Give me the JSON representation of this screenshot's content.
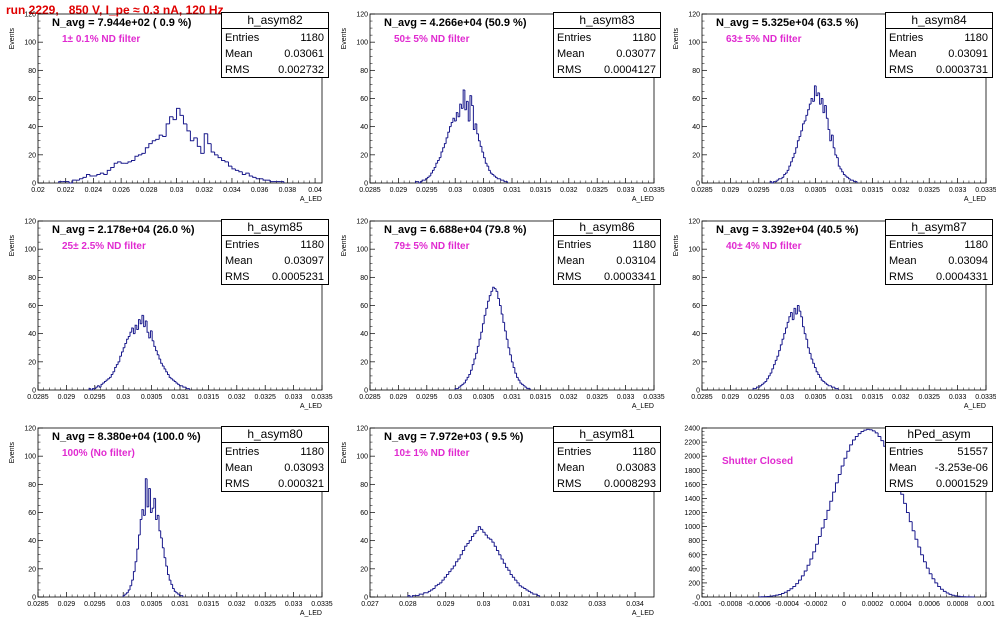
{
  "run_title": "run 2229,   850 V, I_pe ≈ 0.3 nA, 120 Hz",
  "chart_data": [
    {
      "type": "bar",
      "name": "h_asym82",
      "navg": "N_avg = 7.944e+02 ( 0.9 %)",
      "note": "1± 0.1% ND filter",
      "stats": {
        "entries": "1180",
        "mean": "0.03061",
        "rms": "0.002732"
      },
      "xlabel": "A_LED",
      "ylabel": "Events",
      "xlim": [
        0.02,
        0.0405
      ],
      "ylim": [
        0,
        120
      ],
      "xticks": [
        0.02,
        0.022,
        0.024,
        0.026,
        0.028,
        0.03,
        0.032,
        0.034,
        0.036,
        0.038,
        0.04
      ],
      "xtick_labels": [
        "0.02",
        "0.022",
        "0.024",
        "0.026",
        "0.028",
        "0.03",
        "0.032",
        "0.034",
        "0.036",
        "0.038",
        "0.04"
      ],
      "yticks": [
        0,
        20,
        40,
        60,
        80,
        100,
        120
      ],
      "bin_start": 0.0215,
      "bin_width": 0.00025,
      "counts": [
        1,
        1,
        1,
        0,
        2,
        2,
        3,
        4,
        6,
        5,
        5,
        6,
        7,
        6,
        9,
        11,
        14,
        15,
        14,
        14,
        15,
        16,
        19,
        20,
        21,
        25,
        28,
        30,
        31,
        34,
        33,
        42,
        47,
        45,
        53,
        48,
        42,
        37,
        30,
        32,
        26,
        21,
        35,
        28,
        22,
        20,
        18,
        16,
        15,
        12,
        10,
        9,
        8,
        6,
        7,
        5,
        4,
        3,
        3,
        2,
        2,
        1,
        1,
        1,
        1
      ]
    },
    {
      "type": "bar",
      "name": "h_asym83",
      "navg": "N_avg = 4.266e+04 (50.9 %)",
      "note": "50± 5% ND filter",
      "stats": {
        "entries": "1180",
        "mean": "0.03077",
        "rms": "0.0004127"
      },
      "xlabel": "A_LED",
      "ylabel": "Events",
      "xlim": [
        0.0285,
        0.0335
      ],
      "ylim": [
        0,
        120
      ],
      "xticks": [
        0.0285,
        0.029,
        0.0295,
        0.03,
        0.0305,
        0.031,
        0.0315,
        0.032,
        0.0325,
        0.033,
        0.0335
      ],
      "xtick_labels": [
        "0.0285",
        "0.029",
        "0.0295",
        "0.03",
        "0.0305",
        "0.031",
        "0.0315",
        "0.032",
        "0.0325",
        "0.033",
        "0.0335"
      ],
      "yticks": [
        0,
        20,
        40,
        60,
        80,
        100,
        120
      ],
      "bin_start": 0.0293,
      "bin_width": 3e-05,
      "counts": [
        1,
        1,
        0,
        1,
        2,
        2,
        3,
        4,
        5,
        7,
        9,
        11,
        14,
        16,
        18,
        22,
        25,
        28,
        32,
        36,
        40,
        43,
        46,
        44,
        50,
        47,
        56,
        53,
        66,
        52,
        58,
        44,
        62,
        55,
        38,
        42,
        35,
        30,
        26,
        22,
        18,
        14,
        12,
        9,
        7,
        6,
        5,
        4,
        3,
        3,
        2,
        2,
        1,
        1
      ]
    },
    {
      "type": "bar",
      "name": "h_asym84",
      "navg": "N_avg = 5.325e+04 (63.5 %)",
      "note": "63± 5% ND filter",
      "stats": {
        "entries": "1180",
        "mean": "0.03091",
        "rms": "0.0003731"
      },
      "xlabel": "A_LED",
      "ylabel": "Events",
      "xlim": [
        0.0285,
        0.0335
      ],
      "ylim": [
        0,
        120
      ],
      "xticks": [
        0.0285,
        0.029,
        0.0295,
        0.03,
        0.0305,
        0.031,
        0.0315,
        0.032,
        0.0325,
        0.033,
        0.0335
      ],
      "xtick_labels": [
        "0.0285",
        "0.029",
        "0.0295",
        "0.03",
        "0.0305",
        "0.031",
        "0.0315",
        "0.032",
        "0.0325",
        "0.033",
        "0.0335"
      ],
      "yticks": [
        0,
        20,
        40,
        60,
        80,
        100,
        120
      ],
      "bin_start": 0.0297,
      "bin_width": 3e-05,
      "counts": [
        1,
        0,
        1,
        1,
        2,
        3,
        3,
        4,
        6,
        7,
        9,
        12,
        15,
        18,
        21,
        25,
        30,
        33,
        37,
        42,
        44,
        48,
        52,
        56,
        60,
        58,
        69,
        62,
        64,
        56,
        60,
        50,
        55,
        46,
        38,
        30,
        34,
        25,
        20,
        18,
        12,
        10,
        8,
        6,
        5,
        4,
        3,
        2,
        2,
        1,
        1
      ]
    },
    {
      "type": "bar",
      "name": "h_asym85",
      "navg": "N_avg = 2.178e+04 (26.0 %)",
      "note": "25± 2.5% ND filter",
      "stats": {
        "entries": "1180",
        "mean": "0.03097",
        "rms": "0.0005231"
      },
      "xlabel": "A_LED",
      "ylabel": "Events",
      "xlim": [
        0.0285,
        0.0335
      ],
      "ylim": [
        0,
        120
      ],
      "xticks": [
        0.0285,
        0.029,
        0.0295,
        0.03,
        0.0305,
        0.031,
        0.0315,
        0.032,
        0.0325,
        0.033,
        0.0335
      ],
      "xtick_labels": [
        "0.0285",
        "0.029",
        "0.0295",
        "0.03",
        "0.0305",
        "0.031",
        "0.0315",
        "0.032",
        "0.0325",
        "0.033",
        "0.0335"
      ],
      "yticks": [
        0,
        20,
        40,
        60,
        80,
        100,
        120
      ],
      "bin_start": 0.0294,
      "bin_width": 3e-05,
      "counts": [
        1,
        0,
        1,
        1,
        2,
        3,
        2,
        4,
        5,
        6,
        7,
        8,
        9,
        11,
        13,
        16,
        18,
        20,
        24,
        27,
        30,
        33,
        36,
        38,
        41,
        44,
        40,
        46,
        43,
        50,
        47,
        53,
        45,
        49,
        41,
        37,
        42,
        35,
        31,
        28,
        25,
        22,
        19,
        17,
        15,
        13,
        11,
        9,
        8,
        7,
        6,
        5,
        4,
        3,
        3,
        2,
        2,
        1,
        1
      ]
    },
    {
      "type": "bar",
      "name": "h_asym86",
      "navg": "N_avg = 6.688e+04 (79.8 %)",
      "note": "79± 5% ND filter",
      "stats": {
        "entries": "1180",
        "mean": "0.03104",
        "rms": "0.0003341"
      },
      "xlabel": "A_LED",
      "ylabel": "Events",
      "xlim": [
        0.0285,
        0.0335
      ],
      "ylim": [
        0,
        120
      ],
      "xticks": [
        0.0285,
        0.029,
        0.0295,
        0.03,
        0.0305,
        0.031,
        0.0315,
        0.032,
        0.0325,
        0.033,
        0.0335
      ],
      "xtick_labels": [
        "0.0285",
        "0.029",
        "0.0295",
        "0.03",
        "0.0305",
        "0.031",
        "0.0315",
        "0.032",
        "0.0325",
        "0.033",
        "0.0335"
      ],
      "yticks": [
        0,
        20,
        40,
        60,
        80,
        100,
        120
      ],
      "bin_start": 0.03,
      "bin_width": 3e-05,
      "counts": [
        1,
        1,
        2,
        3,
        4,
        5,
        7,
        9,
        11,
        14,
        18,
        22,
        26,
        31,
        36,
        41,
        47,
        53,
        58,
        63,
        67,
        70,
        73,
        72,
        70,
        65,
        60,
        54,
        48,
        42,
        36,
        30,
        25,
        20,
        16,
        12,
        9,
        7,
        5,
        4,
        3,
        2,
        1,
        1
      ]
    },
    {
      "type": "bar",
      "name": "h_asym87",
      "navg": "N_avg = 3.392e+04 (40.5 %)",
      "note": "40± 4% ND filter",
      "stats": {
        "entries": "1180",
        "mean": "0.03094",
        "rms": "0.0004331"
      },
      "xlabel": "A_LED",
      "ylabel": "Events",
      "xlim": [
        0.0285,
        0.0335
      ],
      "ylim": [
        0,
        120
      ],
      "xticks": [
        0.0285,
        0.029,
        0.0295,
        0.03,
        0.0305,
        0.031,
        0.0315,
        0.032,
        0.0325,
        0.033,
        0.0335
      ],
      "xtick_labels": [
        "0.0285",
        "0.029",
        "0.0295",
        "0.03",
        "0.0305",
        "0.031",
        "0.0315",
        "0.032",
        "0.0325",
        "0.033",
        "0.0335"
      ],
      "yticks": [
        0,
        20,
        40,
        60,
        80,
        100,
        120
      ],
      "bin_start": 0.0294,
      "bin_width": 3e-05,
      "counts": [
        1,
        1,
        2,
        2,
        3,
        4,
        5,
        6,
        8,
        10,
        12,
        15,
        18,
        21,
        24,
        28,
        32,
        36,
        40,
        44,
        48,
        52,
        55,
        50,
        58,
        54,
        60,
        56,
        52,
        45,
        40,
        36,
        30,
        26,
        22,
        19,
        16,
        13,
        11,
        9,
        7,
        6,
        5,
        4,
        3,
        3,
        2,
        2,
        1,
        1
      ]
    },
    {
      "type": "bar",
      "name": "h_asym80",
      "navg": "N_avg = 8.380e+04 (100.0 %)",
      "note": "100% (No filter)",
      "stats": {
        "entries": "1180",
        "mean": "0.03093",
        "rms": "0.000321"
      },
      "xlabel": "A_LED",
      "ylabel": "Events",
      "xlim": [
        0.0285,
        0.0335
      ],
      "ylim": [
        0,
        120
      ],
      "xticks": [
        0.0285,
        0.029,
        0.0295,
        0.03,
        0.0305,
        0.031,
        0.0315,
        0.032,
        0.0325,
        0.033,
        0.0335
      ],
      "xtick_labels": [
        "0.0285",
        "0.029",
        "0.0295",
        "0.03",
        "0.0305",
        "0.031",
        "0.0315",
        "0.032",
        "0.0325",
        "0.033",
        "0.0335"
      ],
      "yticks": [
        0,
        20,
        40,
        60,
        80,
        100,
        120
      ],
      "bin_start": 0.03,
      "bin_width": 3e-05,
      "counts": [
        1,
        2,
        3,
        5,
        8,
        12,
        18,
        25,
        34,
        44,
        55,
        62,
        58,
        84,
        64,
        77,
        60,
        63,
        70,
        55,
        58,
        47,
        42,
        35,
        28,
        22,
        16,
        12,
        9,
        6,
        4,
        3,
        2,
        1,
        1
      ]
    },
    {
      "type": "bar",
      "name": "h_asym81",
      "navg": "N_avg = 7.972e+03 ( 9.5 %)",
      "note": "10± 1% ND filter",
      "stats": {
        "entries": "1180",
        "mean": "0.03083",
        "rms": "0.0008293"
      },
      "xlabel": "A_LED",
      "ylabel": "Events",
      "xlim": [
        0.027,
        0.0345
      ],
      "ylim": [
        0,
        120
      ],
      "xticks": [
        0.027,
        0.028,
        0.029,
        0.03,
        0.031,
        0.032,
        0.033,
        0.034
      ],
      "xtick_labels": [
        "0.027",
        "0.028",
        "0.029",
        "0.03",
        "0.031",
        "0.032",
        "0.033",
        "0.034"
      ],
      "yticks": [
        0,
        20,
        40,
        60,
        80,
        100,
        120
      ],
      "bin_start": 0.028,
      "bin_width": 6e-05,
      "counts": [
        1,
        0,
        1,
        1,
        1,
        2,
        2,
        3,
        3,
        4,
        5,
        6,
        8,
        9,
        10,
        12,
        14,
        16,
        18,
        20,
        22,
        25,
        27,
        30,
        33,
        36,
        38,
        40,
        43,
        45,
        47,
        50,
        48,
        46,
        44,
        42,
        41,
        39,
        36,
        33,
        30,
        27,
        24,
        21,
        19,
        16,
        14,
        12,
        10,
        8,
        7,
        6,
        5,
        4,
        3,
        2,
        2,
        1
      ]
    },
    {
      "type": "bar",
      "name": "hPed_asym",
      "navg": "",
      "note": "Shutter Closed",
      "stats": {
        "entries": "51557",
        "mean": "-3.253e-06",
        "rms": "0.0001529"
      },
      "xlabel": "",
      "ylabel": "",
      "xlim": [
        -0.001,
        0.001
      ],
      "ylim": [
        0,
        2400
      ],
      "xticks": [
        -0.001,
        -0.0008,
        -0.0006,
        -0.0004,
        -0.0002,
        0,
        0.0002,
        0.0004,
        0.0006,
        0.0008,
        0.001
      ],
      "xtick_labels": [
        "-0.001",
        "-0.0008",
        "-0.0006",
        "-0.0004",
        "-0.0002",
        "0",
        "0.0002",
        "0.0004",
        "0.0006",
        "0.0008",
        "0.001"
      ],
      "yticks": [
        0,
        200,
        400,
        600,
        800,
        1000,
        1200,
        1400,
        1600,
        1800,
        2000,
        2200,
        2400
      ],
      "bin_start": -0.0006,
      "bin_width": 2e-05,
      "counts": [
        2,
        3,
        5,
        8,
        12,
        18,
        26,
        36,
        50,
        68,
        90,
        118,
        150,
        190,
        240,
        300,
        370,
        450,
        540,
        640,
        750,
        860,
        980,
        1100,
        1230,
        1360,
        1490,
        1620,
        1740,
        1860,
        1970,
        2070,
        2160,
        2230,
        2280,
        2320,
        2350,
        2370,
        2380,
        2375,
        2360,
        2330,
        2280,
        2220,
        2140,
        2050,
        1950,
        1840,
        1720,
        1590,
        1460,
        1330,
        1200,
        1070,
        940,
        820,
        710,
        600,
        500,
        410,
        330,
        260,
        200,
        150,
        110,
        80,
        56,
        38,
        25,
        16,
        10,
        6,
        4,
        2,
        1,
        1
      ]
    }
  ]
}
